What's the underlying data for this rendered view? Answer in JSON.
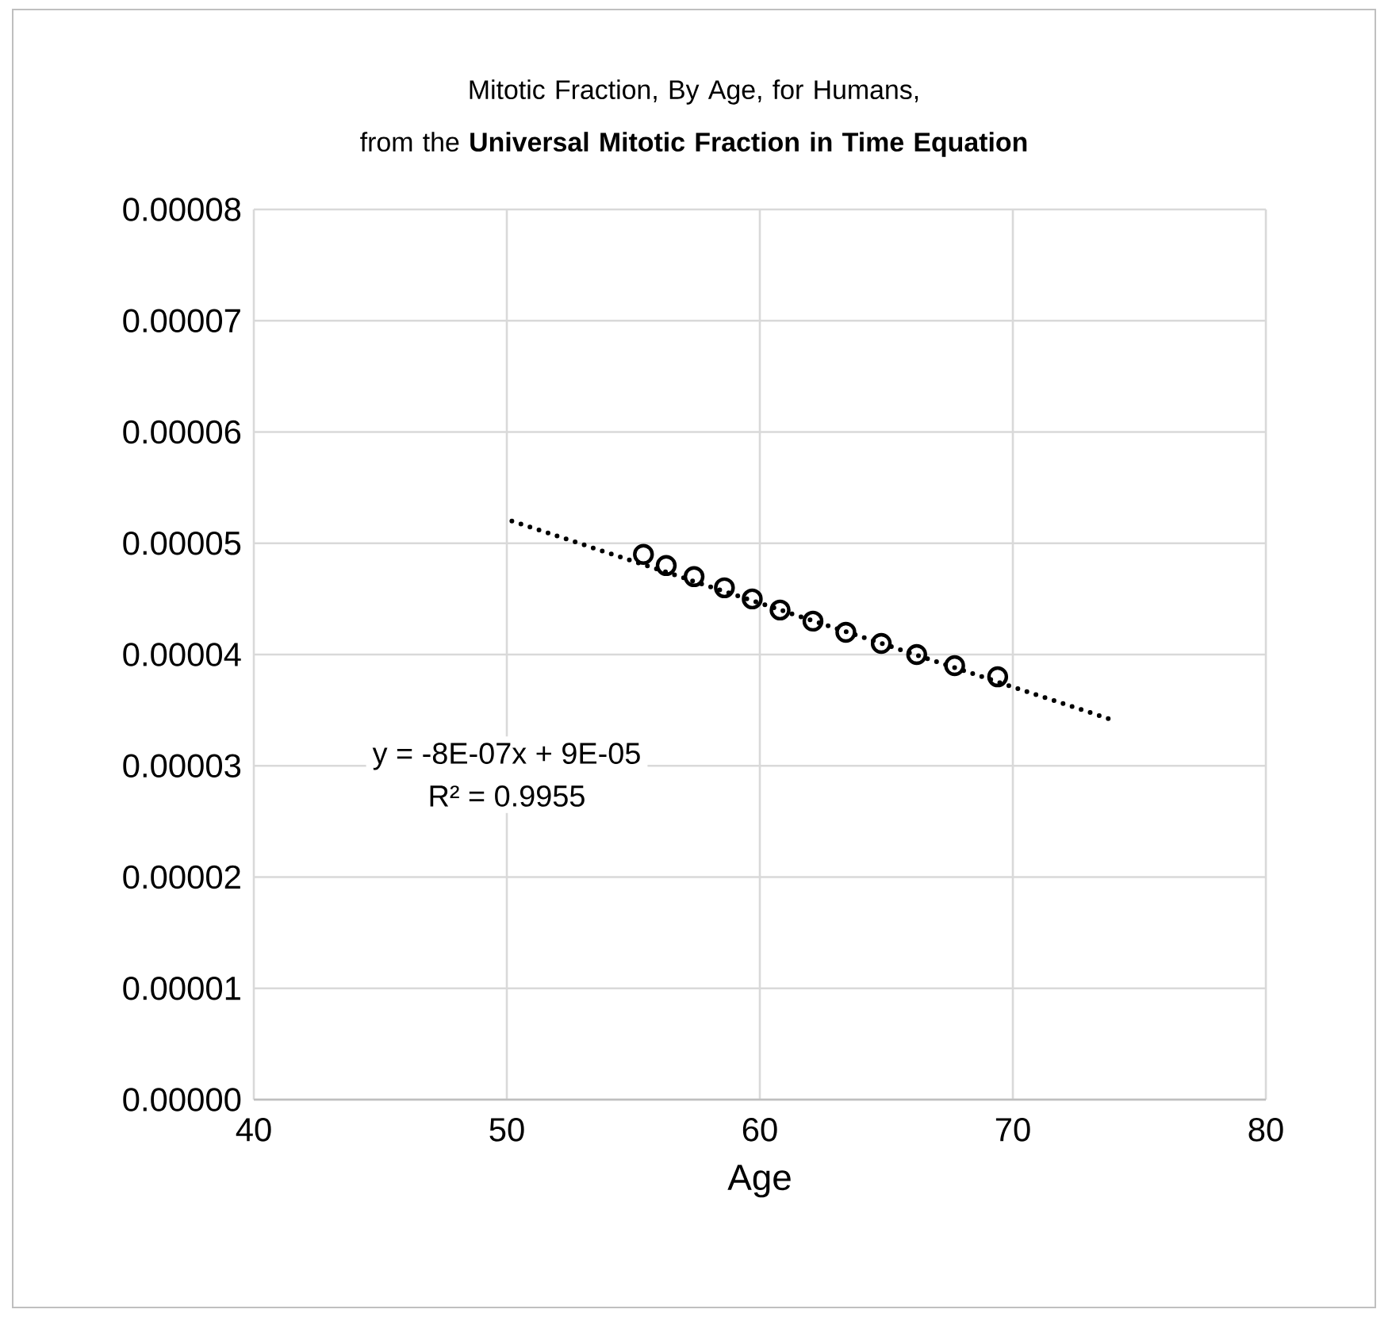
{
  "chart_data": {
    "type": "scatter",
    "title": "Mitotic Fraction, By Age, for Humans,",
    "subtitle": "from the **Universal Mitotic Fraction in Time Equation**",
    "xlabel": "Age",
    "xlim": [
      40,
      80
    ],
    "xticks": [
      40,
      50,
      60,
      70,
      80
    ],
    "ylim": [
      0,
      8e-05
    ],
    "yticks": [
      {
        "value": 0,
        "label": "0.00000"
      },
      {
        "value": 1e-05,
        "label": "0.00001"
      },
      {
        "value": 2e-05,
        "label": "0.00002"
      },
      {
        "value": 3e-05,
        "label": "0.00003"
      },
      {
        "value": 4e-05,
        "label": "0.00004"
      },
      {
        "value": 5e-05,
        "label": "0.00005"
      },
      {
        "value": 6e-05,
        "label": "0.00006"
      },
      {
        "value": 7e-05,
        "label": "0.00007"
      },
      {
        "value": 8e-05,
        "label": "0.00008"
      }
    ],
    "grid": true,
    "legend": false,
    "series": [
      {
        "color": "#000000",
        "marker": "circle",
        "x": [
          55.4,
          56.3,
          57.4,
          58.6,
          59.7,
          60.8,
          62.1,
          63.4,
          64.8,
          66.2,
          67.7,
          69.4
        ],
        "values": [
          4.9e-05,
          4.8e-05,
          4.7e-05,
          4.6e-05,
          4.5e-05,
          4.4e-05,
          4.3e-05,
          4.2e-05,
          4.1e-05,
          4e-05,
          3.9e-05,
          3.8e-05
        ]
      },
      {
        "type": "line",
        "color": "#000000",
        "marker": "none",
        "line_style": "dotted",
        "x": [
          50.2,
          74.1
        ],
        "values": [
          5.2e-05,
          3.4e-05
        ]
      }
    ],
    "annotations": [
      "y = -8E-07x + 9E-05",
      "R² = 0.9955"
    ]
  }
}
